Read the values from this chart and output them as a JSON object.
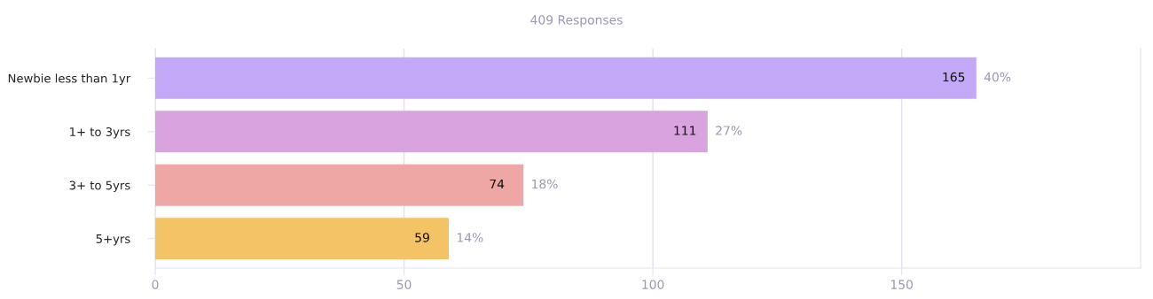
{
  "chart_data": {
    "type": "bar",
    "orientation": "horizontal",
    "subtitle": "409 Responses",
    "categories": [
      "Newbie less than 1yr",
      "1+ to 3yrs",
      "3+ to 5yrs",
      "5+yrs"
    ],
    "values": [
      165,
      111,
      74,
      59
    ],
    "colors": [
      "#c3a9f7",
      "#d8a3de",
      "#efa7a5",
      "#f4c366"
    ],
    "data_labels": true,
    "annotations": [
      {
        "text": "40%",
        "x": 165,
        "y": "Newbie less than 1yr"
      },
      {
        "text": "27%",
        "x": 111,
        "y": "1+ to 3yrs"
      },
      {
        "text": "18%",
        "x": 74,
        "y": "3+ to 5yrs"
      },
      {
        "text": "14%",
        "x": 59,
        "y": "5+yrs"
      }
    ],
    "xlim": [
      0,
      198
    ],
    "xticks": [
      0,
      50,
      100,
      150
    ],
    "grid": "x"
  }
}
